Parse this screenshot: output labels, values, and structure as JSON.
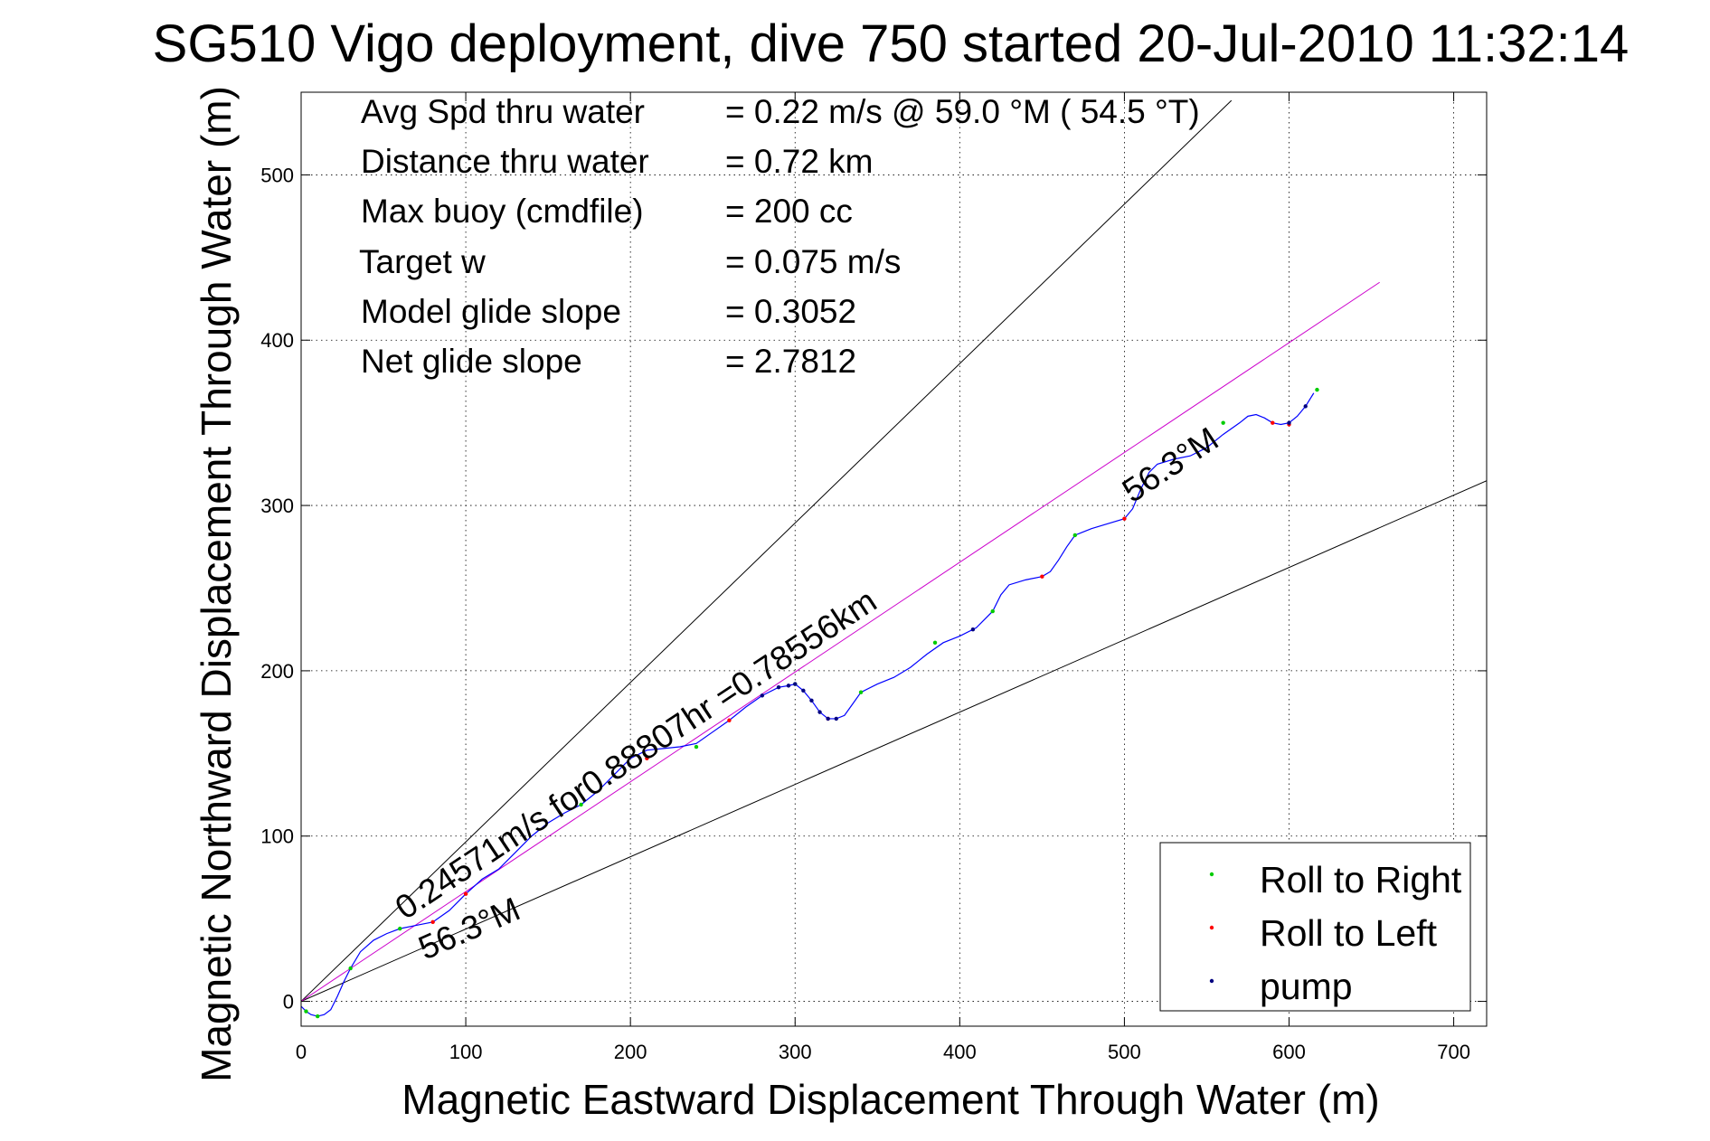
{
  "chart_data": {
    "type": "line",
    "title": "SG510 Vigo deployment, dive 750 started 20-Jul-2010 11:32:14",
    "xlabel": "Magnetic Eastward Displacement Through Water (m)",
    "ylabel": "Magnetic Northward Displacement Through Water (m)",
    "xlim": [
      0,
      720
    ],
    "ylim": [
      -15,
      550
    ],
    "xticks": [
      0,
      100,
      200,
      300,
      400,
      500,
      600,
      700
    ],
    "yticks": [
      0,
      100,
      200,
      300,
      400,
      500
    ],
    "grid": true,
    "legend_position": "bottom-right",
    "stats": [
      {
        "label": "Avg Spd thru water",
        "value": "=  0.22 m/s @  59.0 °M ( 54.5 °T)"
      },
      {
        "label": "Distance thru water",
        "value": "=  0.72 km"
      },
      {
        "label": "Max buoy (cmdfile)",
        "value": "= 200 cc"
      },
      {
        "label": "Target w",
        "value": "= 0.075 m/s"
      },
      {
        "label": "Model glide slope",
        "value": "= 0.3052"
      },
      {
        "label": "Net glide slope",
        "value": "= 2.7812"
      }
    ],
    "legend": [
      {
        "name": "Roll to Right",
        "color": "#00cc00"
      },
      {
        "name": "Roll to Left",
        "color": "#ff0000"
      },
      {
        "name": "pump",
        "color": "#000080"
      }
    ],
    "annotations": {
      "speed": "0.24571m/s for0.88807hr =0.78556km",
      "heading_low": "56.3°M",
      "heading_high": "56.3°M"
    },
    "reference_lines": [
      {
        "name": "upper-bound",
        "color": "#000000",
        "points": [
          [
            0,
            0
          ],
          [
            565,
            545
          ]
        ]
      },
      {
        "name": "lower-bound",
        "color": "#000000",
        "points": [
          [
            0,
            0
          ],
          [
            720,
            315
          ]
        ]
      },
      {
        "name": "heading-line",
        "color": "#cc00cc",
        "points": [
          [
            0,
            0
          ],
          [
            655,
            435
          ]
        ]
      }
    ],
    "track": {
      "color": "#0000ff",
      "x": [
        0,
        3,
        6,
        10,
        14,
        18,
        22,
        26,
        30,
        36,
        44,
        52,
        60,
        70,
        80,
        90,
        100,
        110,
        120,
        130,
        140,
        150,
        160,
        170,
        180,
        190,
        200,
        210,
        220,
        230,
        240,
        250,
        260,
        270,
        280,
        290,
        296,
        300,
        305,
        310,
        315,
        320,
        325,
        330,
        335,
        340,
        350,
        360,
        370,
        380,
        390,
        400,
        410,
        420,
        425,
        430,
        440,
        450,
        455,
        460,
        465,
        470,
        475,
        480,
        490,
        500,
        505,
        510,
        515,
        520,
        530,
        540,
        550,
        560,
        570,
        575,
        580,
        585,
        590,
        595,
        600,
        605,
        610,
        615
      ],
      "y": [
        -3,
        -6,
        -8,
        -9,
        -8,
        -5,
        3,
        12,
        20,
        30,
        37,
        41,
        44,
        46,
        48,
        55,
        65,
        74,
        80,
        90,
        100,
        108,
        114,
        119,
        127,
        137,
        147,
        152,
        153,
        154,
        156,
        163,
        170,
        178,
        185,
        190,
        191,
        192,
        188,
        182,
        175,
        171,
        171,
        173,
        180,
        187,
        192,
        196,
        202,
        210,
        217,
        221,
        226,
        236,
        246,
        252,
        255,
        257,
        260,
        267,
        275,
        282,
        284,
        286,
        289,
        292,
        298,
        310,
        320,
        325,
        328,
        330,
        335,
        343,
        350,
        354,
        355,
        353,
        350,
        349,
        350,
        354,
        360,
        368
      ]
    },
    "markers": {
      "roll_right": {
        "color": "#00cc00",
        "x": [
          3,
          10,
          30,
          60,
          170,
          240,
          300,
          340,
          385,
          420,
          470,
          560,
          617
        ],
        "y": [
          -6,
          -9,
          20,
          44,
          119,
          154,
          192,
          187,
          217,
          236,
          282,
          350,
          370
        ]
      },
      "roll_left": {
        "color": "#ff0000",
        "x": [
          80,
          100,
          210,
          260,
          320,
          450,
          500,
          590,
          600
        ],
        "y": [
          48,
          65,
          147,
          170,
          171,
          257,
          292,
          350,
          349
        ]
      },
      "pump": {
        "color": "#000080",
        "x": [
          280,
          290,
          296,
          300,
          305,
          310,
          315,
          320,
          325,
          408,
          600,
          610
        ],
        "y": [
          185,
          190,
          191,
          192,
          188,
          182,
          175,
          171,
          171,
          225,
          350,
          360
        ]
      }
    }
  }
}
